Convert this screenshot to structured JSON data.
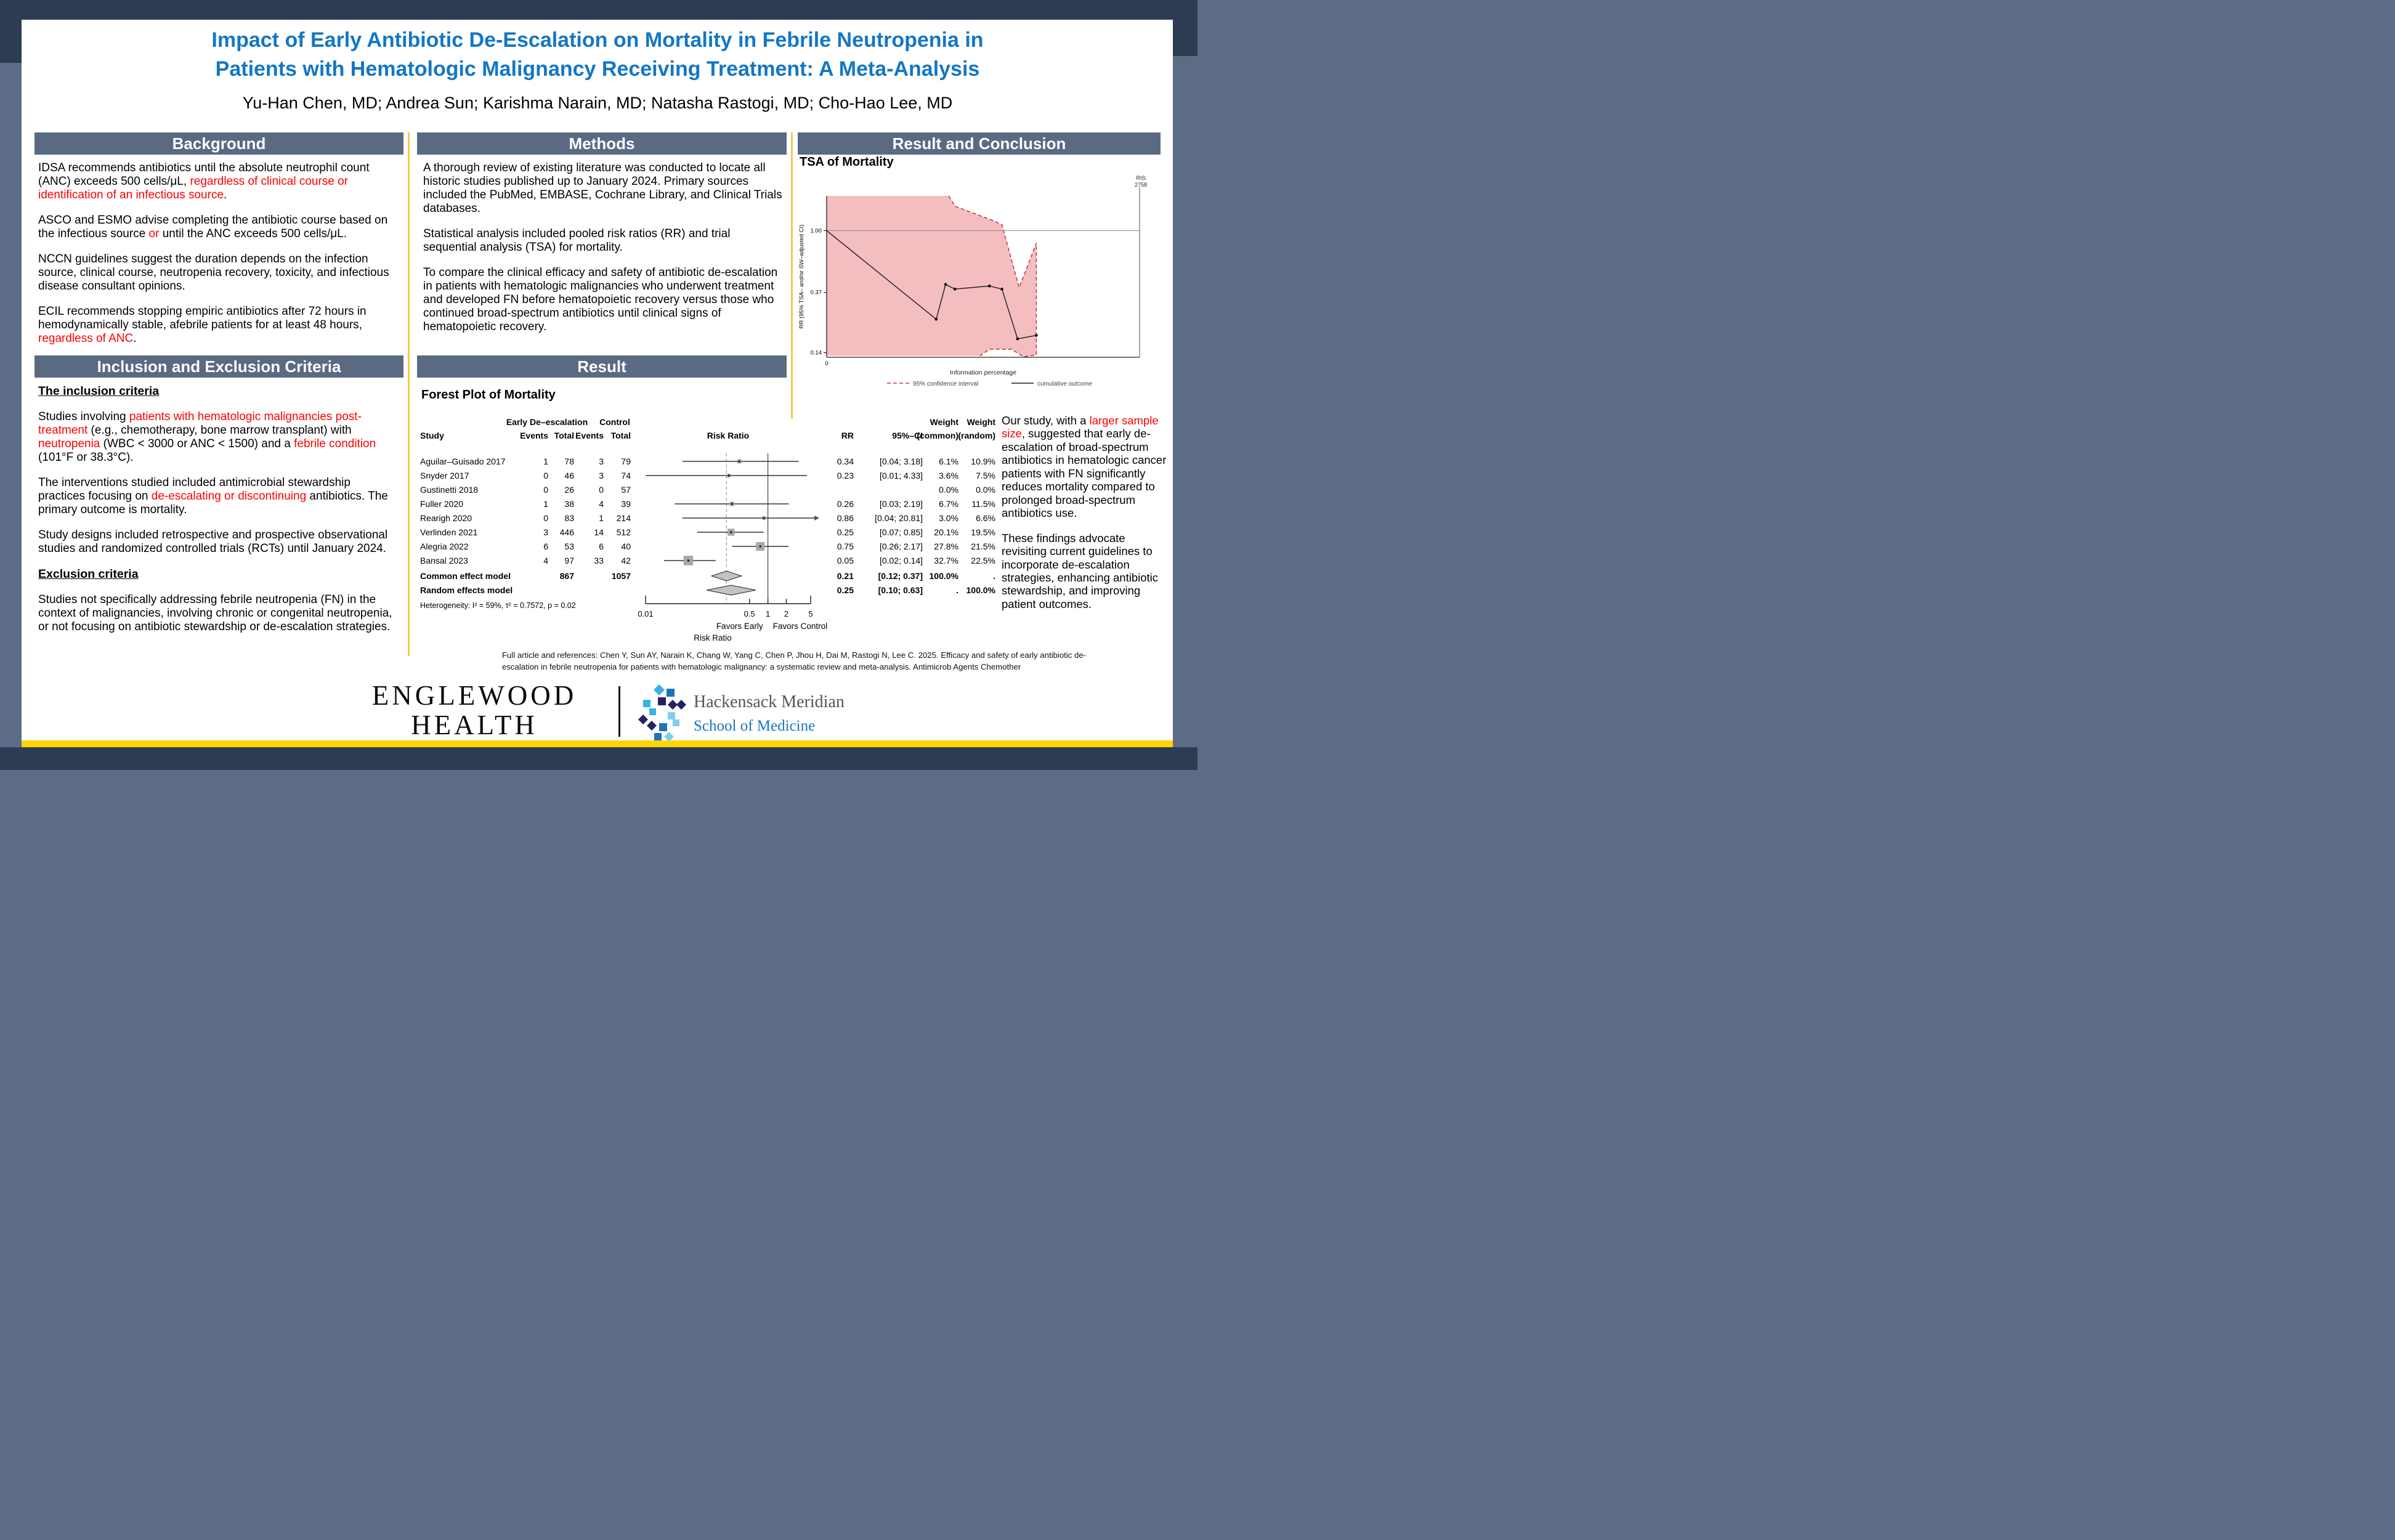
{
  "colors": {
    "title_blue": "#1377c4",
    "accent_red": "#fe0000",
    "section_header_bg": "#5a6a83",
    "frame_navy": "#2c3c52",
    "frame_slate": "#5d6c85",
    "stripe_yellow": "#ffd504",
    "divider_gold": "#f2cc51",
    "tsa_pink": "#f4bdbf",
    "tsa_ci_red": "#c43b3f",
    "hm_blue": "#1b75bb",
    "hm_gray": "#54565a",
    "forest_marker_gray": "#a8a8a8"
  },
  "header": {
    "title_lines": [
      "Impact of Early Antibiotic De-Escalation on Mortality in Febrile Neutropenia in",
      "Patients with Hematologic Malignancy Receiving Treatment: A Meta-Analysis"
    ],
    "authors": "Yu-Han Chen, MD; Andrea Sun; Karishma Narain, MD; Natasha Rastogi, MD; Cho-Hao Lee, MD"
  },
  "columns": {
    "background": {
      "header": "Background",
      "blocks": [
        {
          "type": "p",
          "segs": [
            {
              "t": "IDSA recommends antibiotics until the absolute neutrophil count (ANC) exceeds 500 cells/μL, "
            },
            {
              "t": "regardless of clinical course or identification of an infectious source",
              "red": true
            },
            {
              "t": "."
            }
          ]
        },
        {
          "type": "p",
          "segs": [
            {
              "t": "ASCO and ESMO advise completing the antibiotic course based on the infectious source "
            },
            {
              "t": "or",
              "red": true
            },
            {
              "t": " until the ANC exceeds 500 cells/μL."
            }
          ]
        },
        {
          "type": "p",
          "segs": [
            {
              "t": "NCCN guidelines suggest the duration depends on the infection source, clinical course, neutropenia recovery, toxicity, and infectious disease consultant opinions."
            }
          ]
        },
        {
          "type": "p",
          "segs": [
            {
              "t": "ECIL recommends stopping empiric antibiotics after 72 hours in hemodynamically stable, afebrile patients for at least 48 hours, "
            },
            {
              "t": "regardless of ANC",
              "red": true
            },
            {
              "t": "."
            }
          ]
        }
      ]
    },
    "criteria": {
      "header": "Inclusion and Exclusion Criteria",
      "blocks": [
        {
          "type": "h",
          "text": "The inclusion criteria"
        },
        {
          "type": "p",
          "segs": [
            {
              "t": "Studies involving "
            },
            {
              "t": "patients with hematologic malignancies post-treatment",
              "red": true
            },
            {
              "t": " (e.g., chemotherapy, bone marrow transplant) with "
            },
            {
              "t": "neutropenia",
              "red": true
            },
            {
              "t": " (WBC < 3000 or ANC < 1500) and a "
            },
            {
              "t": "febrile condition",
              "red": true
            },
            {
              "t": " (101°F or 38.3°C)."
            }
          ]
        },
        {
          "type": "p",
          "segs": [
            {
              "t": "The interventions studied included antimicrobial stewardship practices focusing on "
            },
            {
              "t": "de-escalating or discontinuing",
              "red": true
            },
            {
              "t": " antibiotics. The primary outcome is mortality."
            }
          ]
        },
        {
          "type": "p",
          "segs": [
            {
              "t": "Study designs included retrospective and prospective observational studies and randomized controlled trials (RCTs) until January 2024."
            }
          ]
        },
        {
          "type": "h",
          "text": "Exclusion criteria"
        },
        {
          "type": "p",
          "segs": [
            {
              "t": "Studies not specifically addressing febrile neutropenia (FN) in the context of malignancies, involving chronic or congenital neutropenia, or not focusing on antibiotic stewardship or de-escalation strategies."
            }
          ]
        }
      ]
    },
    "methods": {
      "header": "Methods",
      "blocks": [
        {
          "type": "p",
          "segs": [
            {
              "t": "A thorough review of existing literature was conducted to locate all historic studies published up to January 2024. Primary sources included the PubMed, EMBASE, Cochrane Library, and Clinical Trials databases."
            }
          ]
        },
        {
          "type": "p",
          "segs": [
            {
              "t": "Statistical analysis included pooled risk ratios (RR) and trial sequential analysis (TSA) for mortality."
            }
          ]
        },
        {
          "type": "p",
          "segs": [
            {
              "t": "To compare the clinical efficacy and safety of antibiotic de-escalation in patients with hematologic malignancies who underwent treatment and developed FN before hematopoietic recovery versus those who continued broad-spectrum antibiotics until clinical signs of hematopoietic recovery."
            }
          ]
        }
      ]
    },
    "result": {
      "header": "Result"
    },
    "conclusion": {
      "header": "Result and Conclusion",
      "blocks": [
        {
          "type": "p",
          "segs": [
            {
              "t": "Our study, with a "
            },
            {
              "t": "larger sample size",
              "red": true
            },
            {
              "t": ", suggested that early de-escalation of broad-spectrum antibiotics in hematologic cancer patients with FN significantly reduces mortality compared to prolonged broad-spectrum antibiotics use."
            }
          ]
        },
        {
          "type": "p",
          "segs": [
            {
              "t": "These findings advocate revisiting current guidelines to incorporate de-escalation strategies, enhancing antibiotic stewardship, and improving patient outcomes."
            }
          ]
        }
      ]
    }
  },
  "reference": "Full article and references: Chen Y, Sun AY, Narain K, Chang W, Yang C, Chen P, Jhou H, Dai M, Rastogi N, Lee C. 2025. Efficacy and safety of early antibiotic de-escalation in febrile neutropenia for patients with hematologic malignancy: a systematic review and meta-analysis. Antimicrob Agents Chemother",
  "footer": {
    "englewood_lines": [
      "ENGLEWOOD",
      "HEALTH"
    ],
    "hackensack_line1": "Hackensack Meridian",
    "hackensack_line2": "School of Medicine"
  },
  "chart_data": [
    {
      "type": "table",
      "variant": "forest-plot",
      "title": "Forest Plot of Mortality",
      "col_headers": {
        "group_early": "Early De–escalation",
        "group_control": "Control",
        "study": "Study",
        "events": "Events",
        "total": "Total",
        "risk_ratio": "Risk Ratio",
        "rr": "RR",
        "ci": "95%–CI",
        "weight": "Weight",
        "weight_common": "(common)",
        "weight_random": "(random)"
      },
      "studies": [
        {
          "study": "Aguilar–Guisado 2017",
          "e_events": "1",
          "e_total": "78",
          "c_events": "3",
          "c_total": "79",
          "rr": 0.34,
          "lo": 0.04,
          "hi": 3.18,
          "rr_text": "0.34",
          "ci_text": "[0.04; 3.18]",
          "w_common": "6.1%",
          "w_random": "10.9%",
          "w": 6.1
        },
        {
          "study": "Snyder 2017",
          "e_events": "0",
          "e_total": "46",
          "c_events": "3",
          "c_total": "74",
          "rr": 0.23,
          "lo": 0.01,
          "hi": 4.33,
          "rr_text": "0.23",
          "ci_text": "[0.01; 4.33]",
          "w_common": "3.6%",
          "w_random": "7.5%",
          "w": 3.6
        },
        {
          "study": "Gustinetti 2018",
          "e_events": "0",
          "e_total": "26",
          "c_events": "0",
          "c_total": "57",
          "rr": null,
          "lo": null,
          "hi": null,
          "rr_text": "",
          "ci_text": "",
          "w_common": "0.0%",
          "w_random": "0.0%",
          "w": 0
        },
        {
          "study": "Fuller 2020",
          "e_events": "1",
          "e_total": "38",
          "c_events": "4",
          "c_total": "39",
          "rr": 0.26,
          "lo": 0.03,
          "hi": 2.19,
          "rr_text": "0.26",
          "ci_text": "[0.03; 2.19]",
          "w_common": "6.7%",
          "w_random": "11.5%",
          "w": 6.7
        },
        {
          "study": "Rearigh 2020",
          "e_events": "0",
          "e_total": "83",
          "c_events": "1",
          "c_total": "214",
          "rr": 0.86,
          "lo": 0.04,
          "hi": 20.81,
          "rr_text": "0.86",
          "ci_text": "[0.04; 20.81]",
          "w_common": "3.0%",
          "w_random": "6.6%",
          "w": 3.0
        },
        {
          "study": "Verlinden 2021",
          "e_events": "3",
          "e_total": "446",
          "c_events": "14",
          "c_total": "512",
          "rr": 0.25,
          "lo": 0.07,
          "hi": 0.85,
          "rr_text": "0.25",
          "ci_text": "[0.07; 0.85]",
          "w_common": "20.1%",
          "w_random": "19.5%",
          "w": 20.1
        },
        {
          "study": "Alegria 2022",
          "e_events": "6",
          "e_total": "53",
          "c_events": "6",
          "c_total": "40",
          "rr": 0.75,
          "lo": 0.26,
          "hi": 2.17,
          "rr_text": "0.75",
          "ci_text": "[0.26; 2.17]",
          "w_common": "27.8%",
          "w_random": "21.5%",
          "w": 27.8
        },
        {
          "study": "Bansal 2023",
          "e_events": "4",
          "e_total": "97",
          "c_events": "33",
          "c_total": "42",
          "rr": 0.05,
          "lo": 0.02,
          "hi": 0.14,
          "rr_text": "0.05",
          "ci_text": "[0.02; 0.14]",
          "w_common": "32.7%",
          "w_random": "22.5%",
          "w": 32.7
        }
      ],
      "pooled": [
        {
          "label": "Common effect model",
          "e_total": "867",
          "c_total": "1057",
          "rr": 0.21,
          "lo": 0.12,
          "hi": 0.37,
          "rr_text": "0.21",
          "ci_text": "[0.12; 0.37]",
          "w_common": "100.0%",
          "w_random": "."
        },
        {
          "label": "Random effects model",
          "e_total": "",
          "c_total": "",
          "rr": 0.25,
          "lo": 0.1,
          "hi": 0.63,
          "rr_text": "0.25",
          "ci_text": "[0.10; 0.63]",
          "w_common": ".",
          "w_random": "100.0%"
        }
      ],
      "heterogeneity": "Heterogeneity: I² = 59%, τ² = 0.7572, p = 0.02",
      "axis_range": [
        0.01,
        5
      ],
      "x_ticks": [
        0.01,
        0.5,
        1,
        2,
        5
      ],
      "x_tick_labels": [
        "0.01",
        "0.5",
        "1",
        "2",
        "5"
      ],
      "null_line": 1,
      "pooled_line": 0.21,
      "favors_left": "Favors Early",
      "favors_right": "Favors Control",
      "xlabel": "Risk Ratio"
    },
    {
      "type": "line",
      "variant": "trial-sequential-analysis",
      "title": "TSA of Mortality",
      "xlabel": "Information percentage",
      "ylabel": "RR (95% TSA– and/or SW–adjusted CI)",
      "y_ticks": [
        1.0,
        0.37,
        0.14
      ],
      "y_tick_labels": [
        "1.00",
        "0.37",
        "0.14"
      ],
      "x_origin_label": "0",
      "ris_label_lines": [
        "RIS:",
        "2758"
      ],
      "y_range_log": [
        0.13,
        1.75
      ],
      "reference_line_y": 1.0,
      "legend": [
        {
          "label": "95% confidence interval",
          "style": "dashed",
          "color": "#c43b3f"
        },
        {
          "label": "cumulative outcome",
          "style": "solid",
          "color": "#1a1a1a"
        }
      ],
      "series": [
        {
          "name": "cumulative outcome",
          "x": [
            0,
            35,
            38,
            41,
            52,
            56,
            61,
            67
          ],
          "y": [
            1.0,
            0.24,
            0.42,
            0.39,
            0.41,
            0.39,
            0.175,
            0.185
          ]
        }
      ],
      "ci_region": [
        [
          0,
          1.75
        ],
        [
          39,
          1.75
        ],
        [
          41,
          1.48
        ],
        [
          53,
          1.18
        ],
        [
          56,
          1.1
        ],
        [
          61.5,
          0.4
        ],
        [
          64,
          0.55
        ],
        [
          67,
          0.82
        ],
        [
          67,
          0.135
        ],
        [
          63,
          0.131
        ],
        [
          59,
          0.148
        ],
        [
          52,
          0.148
        ],
        [
          49,
          0.133
        ],
        [
          0,
          0.133
        ]
      ],
      "ci_boundary": [
        [
          39,
          1.75
        ],
        [
          41,
          1.48
        ],
        [
          53,
          1.18
        ],
        [
          56,
          1.1
        ],
        [
          61.5,
          0.4
        ],
        [
          64,
          0.55
        ],
        [
          67,
          0.82
        ],
        [
          67,
          0.135
        ],
        [
          63,
          0.131
        ],
        [
          59,
          0.148
        ],
        [
          52,
          0.148
        ],
        [
          49,
          0.133
        ]
      ]
    }
  ]
}
